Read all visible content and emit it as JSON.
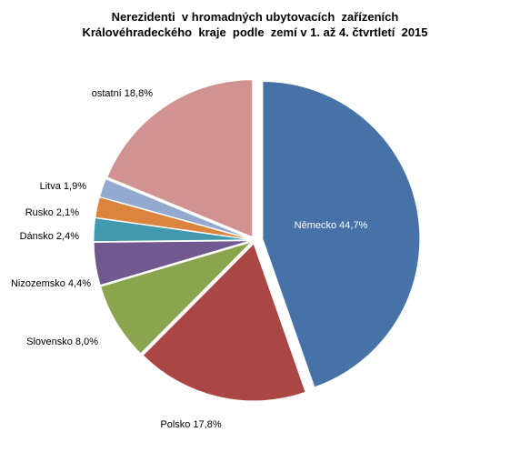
{
  "chart_data": {
    "type": "pie",
    "title_lines": [
      "Nerezidenti  v hromadných ubytovacích  zařízeních",
      "Královéhradeckého  kraje  podle  zemí v 1. až 4. čtvrtletí  2015"
    ],
    "slices": [
      {
        "label": "Německo 44,7%",
        "name": "Německo",
        "value": 44.7,
        "color": "#4672A8"
      },
      {
        "label": "Polsko 17,8%",
        "name": "Polsko",
        "value": 17.8,
        "color": "#AA4744"
      },
      {
        "label": "Slovensko 8,0%",
        "name": "Slovensko",
        "value": 8.0,
        "color": "#89A54E"
      },
      {
        "label": "Nizozemsko 4,4%",
        "name": "Nizozemsko",
        "value": 4.4,
        "color": "#71588F"
      },
      {
        "label": "Dánsko 2,4%",
        "name": "Dánsko",
        "value": 2.4,
        "color": "#4198AF"
      },
      {
        "label": "Rusko 2,1%",
        "name": "Rusko",
        "value": 2.1,
        "color": "#DB843D"
      },
      {
        "label": "Litva 1,9%",
        "name": "Litva",
        "value": 1.9,
        "color": "#93A9CF"
      },
      {
        "label": "ostatní 18,8%",
        "name": "ostatní",
        "value": 18.8,
        "color": "#D19392"
      }
    ],
    "start_angle_deg": 0,
    "direction": "clockwise",
    "exploded": true,
    "legend": "none"
  }
}
